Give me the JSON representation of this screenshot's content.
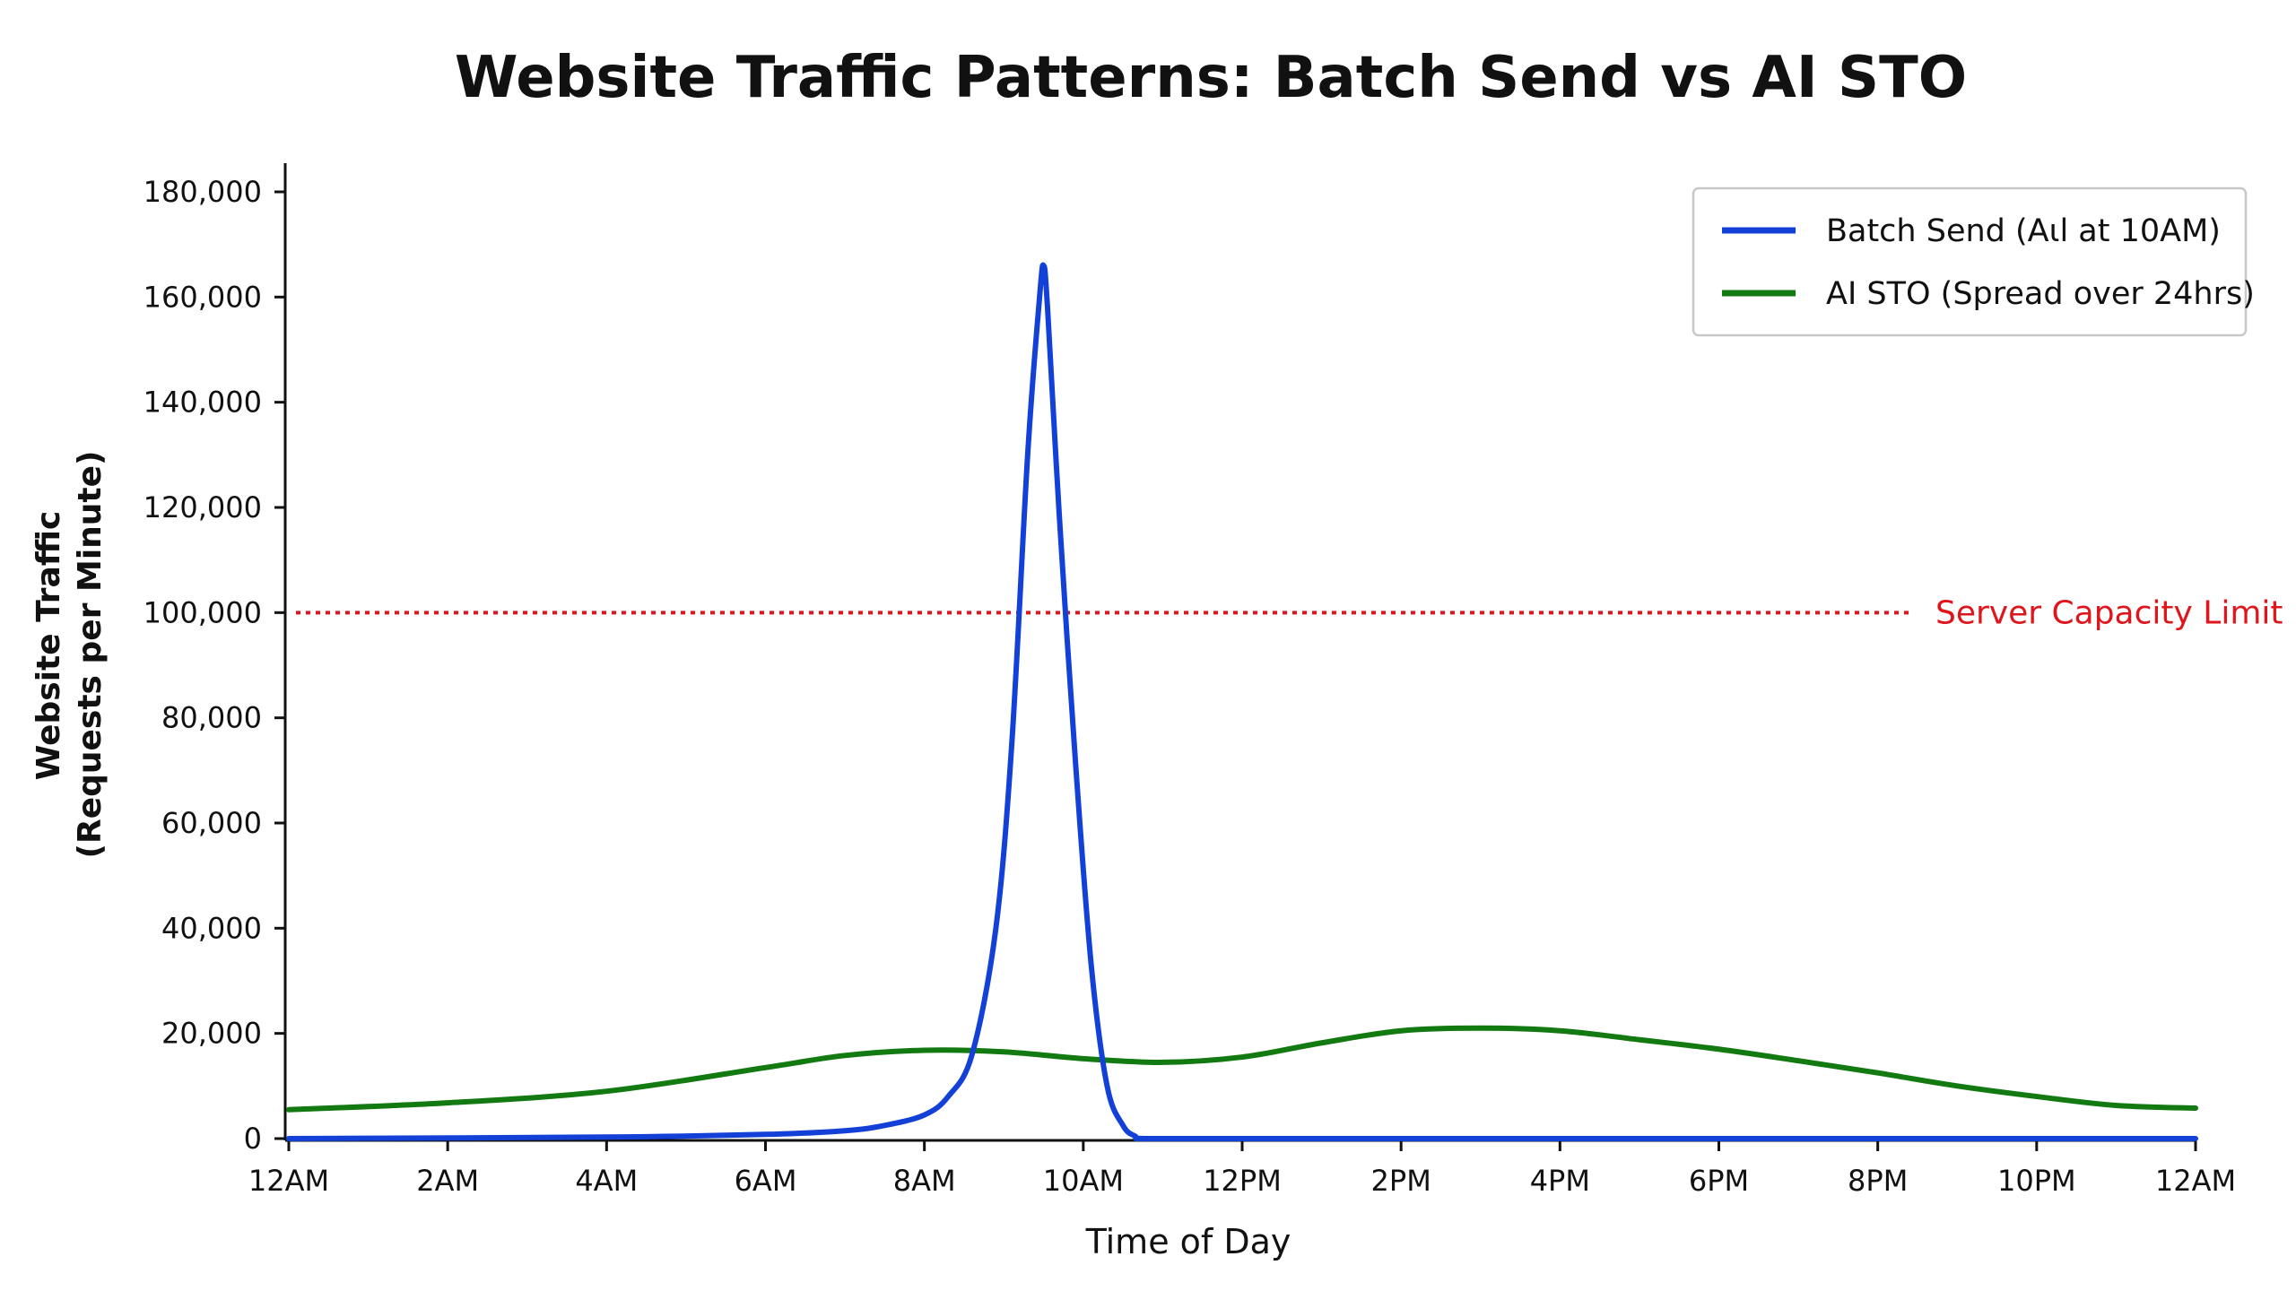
{
  "chart_data": {
    "type": "line",
    "title": "Website Traffic Patterns: Batch Send vs AI STO",
    "xlabel": "Time of Day",
    "ylabel_line1": "Website Traffic",
    "ylabel_line2": "(Requests per Minute)",
    "xlim": [
      0,
      24
    ],
    "ylim": [
      0,
      185000
    ],
    "x_tick_labels": [
      "12AM",
      "2AM",
      "4AM",
      "6AM",
      "8AM",
      "10AM",
      "12PM",
      "2PM",
      "4PM",
      "6PM",
      "8PM",
      "10PM",
      "12AM"
    ],
    "x_tick_values": [
      0,
      2,
      4,
      6,
      8,
      10,
      12,
      14,
      16,
      18,
      20,
      22,
      24
    ],
    "y_ticks": [
      0,
      20000,
      40000,
      60000,
      80000,
      100000,
      120000,
      140000,
      160000,
      180000
    ],
    "y_tick_labels": [
      "0",
      "20,000",
      "40,000",
      "60,000",
      "80,000",
      "100,000",
      "120,000",
      "140,000",
      "160,000",
      "180,000"
    ],
    "grid": false,
    "legend_position": "top-right",
    "series": [
      {
        "name": "Batch Send (Aιl at 10AM)",
        "color": "#1340d6",
        "x": [
          0,
          4,
          6,
          7,
          7.5,
          8,
          8.3,
          8.6,
          8.9,
          9.1,
          9.3,
          9.45,
          9.5,
          9.55,
          9.7,
          9.9,
          10.1,
          10.3,
          10.5,
          10.65,
          10.8,
          12,
          24
        ],
        "y": [
          0,
          300,
          800,
          1500,
          2500,
          4500,
          8000,
          16000,
          40000,
          75000,
          130000,
          160000,
          166000,
          158000,
          118000,
          72000,
          33000,
          10000,
          2500,
          500,
          0,
          0,
          0
        ]
      },
      {
        "name": "AI STO (Spread over 24hrs)",
        "color": "#127a10",
        "x": [
          0,
          2,
          4,
          6,
          7,
          8,
          9,
          10,
          11,
          12,
          13,
          14,
          15,
          16,
          17,
          18,
          19,
          20,
          21,
          22,
          23,
          24
        ],
        "y": [
          5500,
          6800,
          9000,
          13500,
          15800,
          16800,
          16500,
          15200,
          14500,
          15500,
          18200,
          20500,
          21000,
          20500,
          18800,
          17000,
          14800,
          12500,
          10000,
          8000,
          6300,
          5800
        ]
      }
    ],
    "reference_line": {
      "value": 100000,
      "label": "Server Capacity Limit",
      "color": "#e0151b"
    }
  }
}
